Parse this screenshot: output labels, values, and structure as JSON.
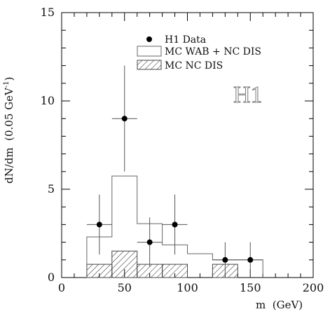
{
  "chart_data": {
    "type": "bar",
    "xlabel": "m  (GeV)",
    "ylabel": "dN/dm  (0.05 GeV",
    "ylabel_sup": "-1",
    "ylabel_close": ")",
    "xlim": [
      0,
      200
    ],
    "ylim": [
      0,
      15
    ],
    "xticks": [
      "0",
      "50",
      "100",
      "150",
      "200"
    ],
    "yticks": [
      "0",
      "5",
      "10",
      "15"
    ],
    "logo": "H1",
    "legend_position": "top-center",
    "series": [
      {
        "name": "H1 Data",
        "kind": "points",
        "points": [
          {
            "x": 30,
            "y": 3,
            "xerr": 10,
            "yerr_low": 1.7,
            "yerr_high": 1.7
          },
          {
            "x": 50,
            "y": 9,
            "xerr": 10,
            "yerr_low": 3.0,
            "yerr_high": 3.0
          },
          {
            "x": 70,
            "y": 2,
            "xerr": 10,
            "yerr_low": 1.4,
            "yerr_high": 1.4
          },
          {
            "x": 90,
            "y": 3,
            "xerr": 10,
            "yerr_low": 1.7,
            "yerr_high": 1.7
          },
          {
            "x": 130,
            "y": 1,
            "xerr": 10,
            "yerr_low": 1.0,
            "yerr_high": 1.0
          },
          {
            "x": 150,
            "y": 1,
            "xerr": 10,
            "yerr_low": 1.0,
            "yerr_high": 1.0
          }
        ]
      },
      {
        "name": "MC WAB + NC DIS",
        "kind": "step",
        "bins": [
          {
            "x0": 20,
            "x1": 40,
            "y": 2.3
          },
          {
            "x0": 40,
            "x1": 60,
            "y": 5.75
          },
          {
            "x0": 60,
            "x1": 80,
            "y": 3.05
          },
          {
            "x0": 80,
            "x1": 100,
            "y": 1.85
          },
          {
            "x0": 100,
            "x1": 120,
            "y": 1.35
          },
          {
            "x0": 120,
            "x1": 140,
            "y": 1.0
          },
          {
            "x0": 140,
            "x1": 160,
            "y": 1.0
          }
        ]
      },
      {
        "name": "MC NC DIS",
        "kind": "hatched",
        "bins": [
          {
            "x0": 20,
            "x1": 40,
            "y": 0.75
          },
          {
            "x0": 40,
            "x1": 60,
            "y": 1.5
          },
          {
            "x0": 60,
            "x1": 80,
            "y": 0.75
          },
          {
            "x0": 80,
            "x1": 100,
            "y": 0.75
          },
          {
            "x0": 120,
            "x1": 140,
            "y": 0.75
          }
        ]
      }
    ]
  }
}
